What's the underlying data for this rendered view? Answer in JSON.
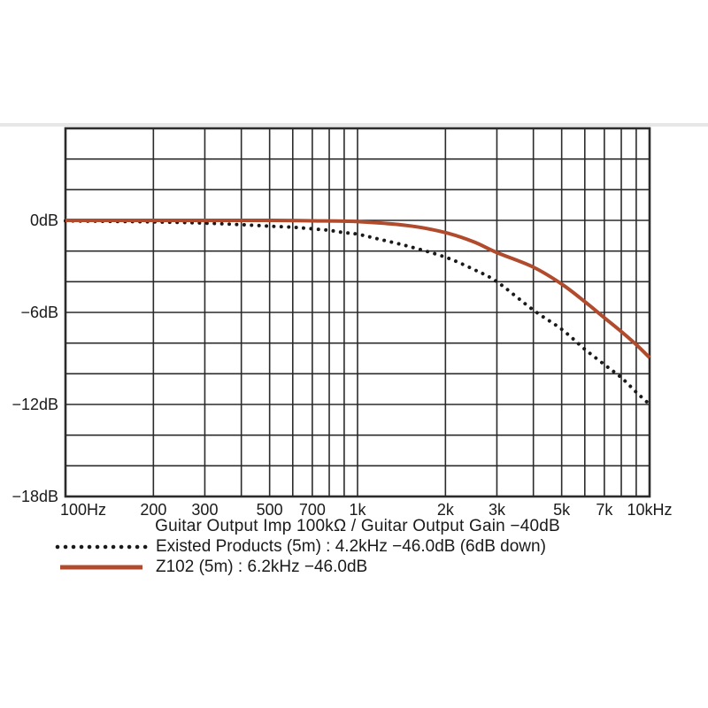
{
  "page": {
    "background": "#ffffff",
    "decor_band": {
      "y": 139,
      "height": 4,
      "color": "#e7e7e7"
    }
  },
  "chart_data": {
    "type": "line",
    "x_scale": "log",
    "x_range_hz": [
      100,
      10000
    ],
    "y_range_db": [
      -18,
      6
    ],
    "y_grid_step_db": 2,
    "grid_on": true,
    "grid_color": "#2b2b2b",
    "text_color": "#1a1a1a",
    "x_axis_title": "Guitar Output Imp 100kΩ / Guitar Output Gain −40dB",
    "x_gridlines_hz": [
      100,
      200,
      300,
      400,
      500,
      600,
      700,
      800,
      900,
      1000,
      2000,
      3000,
      4000,
      5000,
      6000,
      7000,
      8000,
      9000,
      10000
    ],
    "y_tick_labels": [
      {
        "db": 0,
        "label": "0dB"
      },
      {
        "db": -6,
        "label": "−6dB"
      },
      {
        "db": -12,
        "label": "−12dB"
      },
      {
        "db": -18,
        "label": "−18dB"
      }
    ],
    "x_tick_labels": [
      {
        "hz": 100,
        "label": "100Hz",
        "anchor": "start"
      },
      {
        "hz": 200,
        "label": "200",
        "anchor": "middle"
      },
      {
        "hz": 300,
        "label": "300",
        "anchor": "middle"
      },
      {
        "hz": 500,
        "label": "500",
        "anchor": "middle"
      },
      {
        "hz": 700,
        "label": "700",
        "anchor": "middle"
      },
      {
        "hz": 1000,
        "label": "1k",
        "anchor": "middle"
      },
      {
        "hz": 2000,
        "label": "2k",
        "anchor": "middle"
      },
      {
        "hz": 3000,
        "label": "3k",
        "anchor": "middle"
      },
      {
        "hz": 5000,
        "label": "5k",
        "anchor": "middle"
      },
      {
        "hz": 7000,
        "label": "7k",
        "anchor": "middle"
      },
      {
        "hz": 10000,
        "label": "10kHz",
        "anchor": "middle"
      }
    ],
    "legend_position": "bottom-left",
    "series": [
      {
        "name": "existed-products",
        "legend_label": "Existed Products (5m) : 4.2kHz −46.0dB (6dB down)",
        "style": "dotted",
        "color": "#1a1a1a",
        "points_hz_db": [
          [
            100,
            -0.03
          ],
          [
            200,
            -0.1
          ],
          [
            300,
            -0.18
          ],
          [
            400,
            -0.28
          ],
          [
            500,
            -0.38
          ],
          [
            600,
            -0.45
          ],
          [
            700,
            -0.55
          ],
          [
            800,
            -0.65
          ],
          [
            900,
            -0.8
          ],
          [
            1000,
            -0.9
          ],
          [
            1200,
            -1.25
          ],
          [
            1500,
            -1.7
          ],
          [
            2000,
            -2.4
          ],
          [
            2500,
            -3.2
          ],
          [
            3000,
            -4.0
          ],
          [
            4000,
            -5.85
          ],
          [
            5000,
            -7.1
          ],
          [
            6000,
            -8.4
          ],
          [
            7000,
            -9.4
          ],
          [
            8000,
            -10.25
          ],
          [
            9000,
            -11.2
          ],
          [
            10000,
            -12.0
          ]
        ]
      },
      {
        "name": "z102",
        "legend_label": "Z102 (5m) : 6.2kHz −46.0dB",
        "style": "solid",
        "color": "#b04b2e",
        "points_hz_db": [
          [
            100,
            0
          ],
          [
            200,
            0
          ],
          [
            300,
            0
          ],
          [
            500,
            0
          ],
          [
            700,
            -0.03
          ],
          [
            1000,
            -0.08
          ],
          [
            1500,
            -0.35
          ],
          [
            2000,
            -0.8
          ],
          [
            2500,
            -1.4
          ],
          [
            3000,
            -2.1
          ],
          [
            4000,
            -3.05
          ],
          [
            5000,
            -4.15
          ],
          [
            6000,
            -5.3
          ],
          [
            7000,
            -6.35
          ],
          [
            8000,
            -7.25
          ],
          [
            9000,
            -8.1
          ],
          [
            10000,
            -8.95
          ]
        ]
      }
    ]
  }
}
